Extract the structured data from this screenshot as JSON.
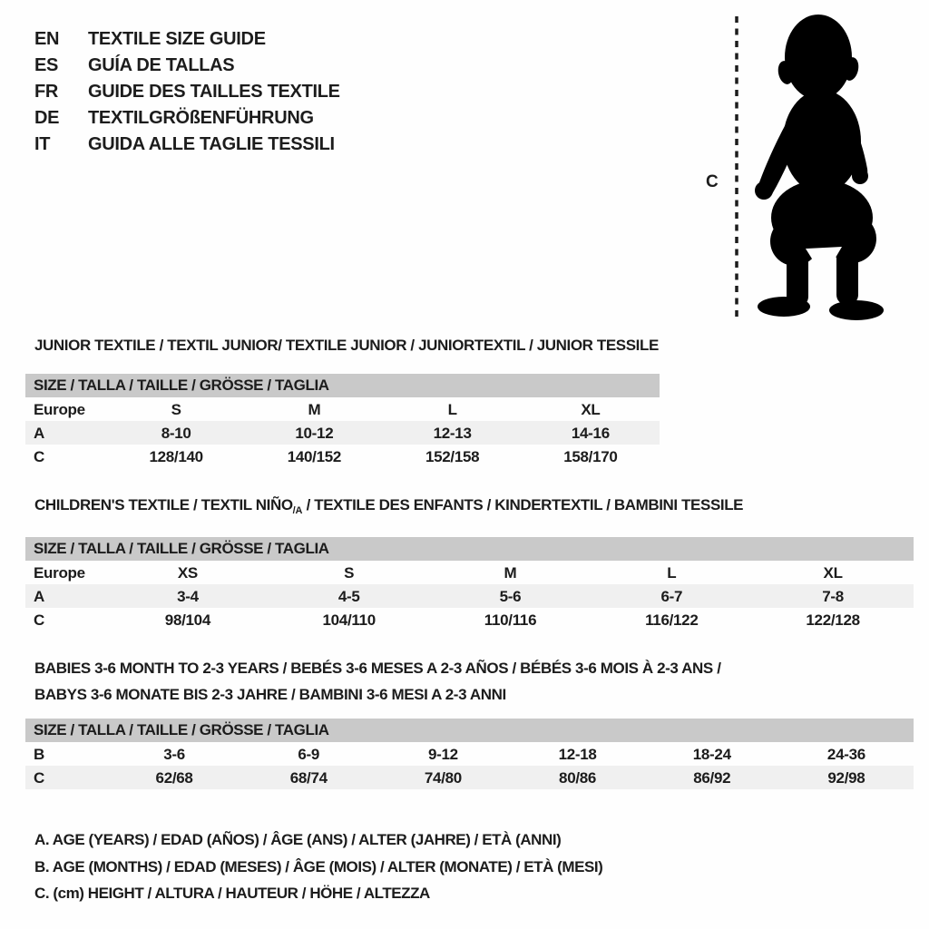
{
  "colors": {
    "ink": "#1c1c1c",
    "table_header_bar": "#c9c9c9",
    "row_shaded": "#f0f0f0",
    "silhouette": "#000000",
    "background": "#fefefe"
  },
  "header": {
    "languages": [
      {
        "code": "EN",
        "title": "TEXTILE SIZE GUIDE"
      },
      {
        "code": "ES",
        "title": "GUÍA DE TALLAS"
      },
      {
        "code": "FR",
        "title": "GUIDE DES TAILLES TEXTILE"
      },
      {
        "code": "DE",
        "title": "TEXTILGRÖßENFÜHRUNG"
      },
      {
        "code": "IT",
        "title": "GUIDA ALLE TAGLIE TESSILI"
      }
    ]
  },
  "figure": {
    "icon": "baby-silhouette",
    "measure_label": "C"
  },
  "sections": [
    {
      "title_lines": [
        [
          {
            "t": "JUNIOR TEXTILE / TEXTIL JUNIOR/ TEXTILE JUNIOR / JUNIORTEXTIL / JUNIOR TESSILE"
          }
        ]
      ],
      "table_header": "SIZE / TALLA / TAILLE / GRÖSSE / TAGLIA",
      "rows": [
        {
          "label": "Europe",
          "values": [
            "S",
            "M",
            "L",
            "XL"
          ],
          "shaded": false
        },
        {
          "label": "A",
          "values": [
            "8-10",
            "10-12",
            "12-13",
            "14-16"
          ],
          "shaded": true
        },
        {
          "label": "C",
          "values": [
            "128/140",
            "140/152",
            "152/158",
            "158/170"
          ],
          "shaded": false
        }
      ]
    },
    {
      "title_lines": [
        [
          {
            "t": "CHILDREN'S TEXTILE / TEXTIL NIÑO"
          },
          {
            "t": "/A",
            "sub": true
          },
          {
            "t": " / TEXTILE DES ENFANTS / KINDERTEXTIL / BAMBINI TESSILE"
          }
        ]
      ],
      "table_header": "SIZE / TALLA / TAILLE / GRÖSSE / TAGLIA",
      "rows": [
        {
          "label": "Europe",
          "values": [
            "XS",
            "S",
            "M",
            "L",
            "XL"
          ],
          "shaded": false
        },
        {
          "label": "A",
          "values": [
            "3-4",
            "4-5",
            "5-6",
            "6-7",
            "7-8"
          ],
          "shaded": true
        },
        {
          "label": "C",
          "values": [
            "98/104",
            "104/110",
            "110/116",
            "116/122",
            "122/128"
          ],
          "shaded": false
        }
      ]
    },
    {
      "title_lines": [
        [
          {
            "t": "BABIES 3-6 MONTH TO 2-3 YEARS / BEBÉS 3-6 MESES A 2-3 AÑOS / BÉBÉS 3-6 MOIS À 2-3 ANS /"
          }
        ],
        [
          {
            "t": "BABYS 3-6 MONATE BIS 2-3 JAHRE / BAMBINI 3-6 MESI A 2-3 ANNI"
          }
        ]
      ],
      "table_header": "SIZE / TALLA / TAILLE / GRÖSSE / TAGLIA",
      "rows": [
        {
          "label": "B",
          "values": [
            "3-6",
            "6-9",
            "9-12",
            "12-18",
            "18-24",
            "24-36"
          ],
          "shaded": false
        },
        {
          "label": "C",
          "values": [
            "62/68",
            "68/74",
            "74/80",
            "80/86",
            "86/92",
            "92/98"
          ],
          "shaded": true
        }
      ]
    }
  ],
  "legend": [
    "A. AGE (YEARS) / EDAD (AÑOS) / ÂGE (ANS) / ALTER (JAHRE) / ETÀ (ANNI)",
    "B. AGE (MONTHS) / EDAD (MESES) / ÂGE (MOIS) / ALTER (MONATE) / ETÀ (MESI)",
    "C. (cm) HEIGHT / ALTURA / HAUTEUR / HÖHE / ALTEZZA"
  ]
}
